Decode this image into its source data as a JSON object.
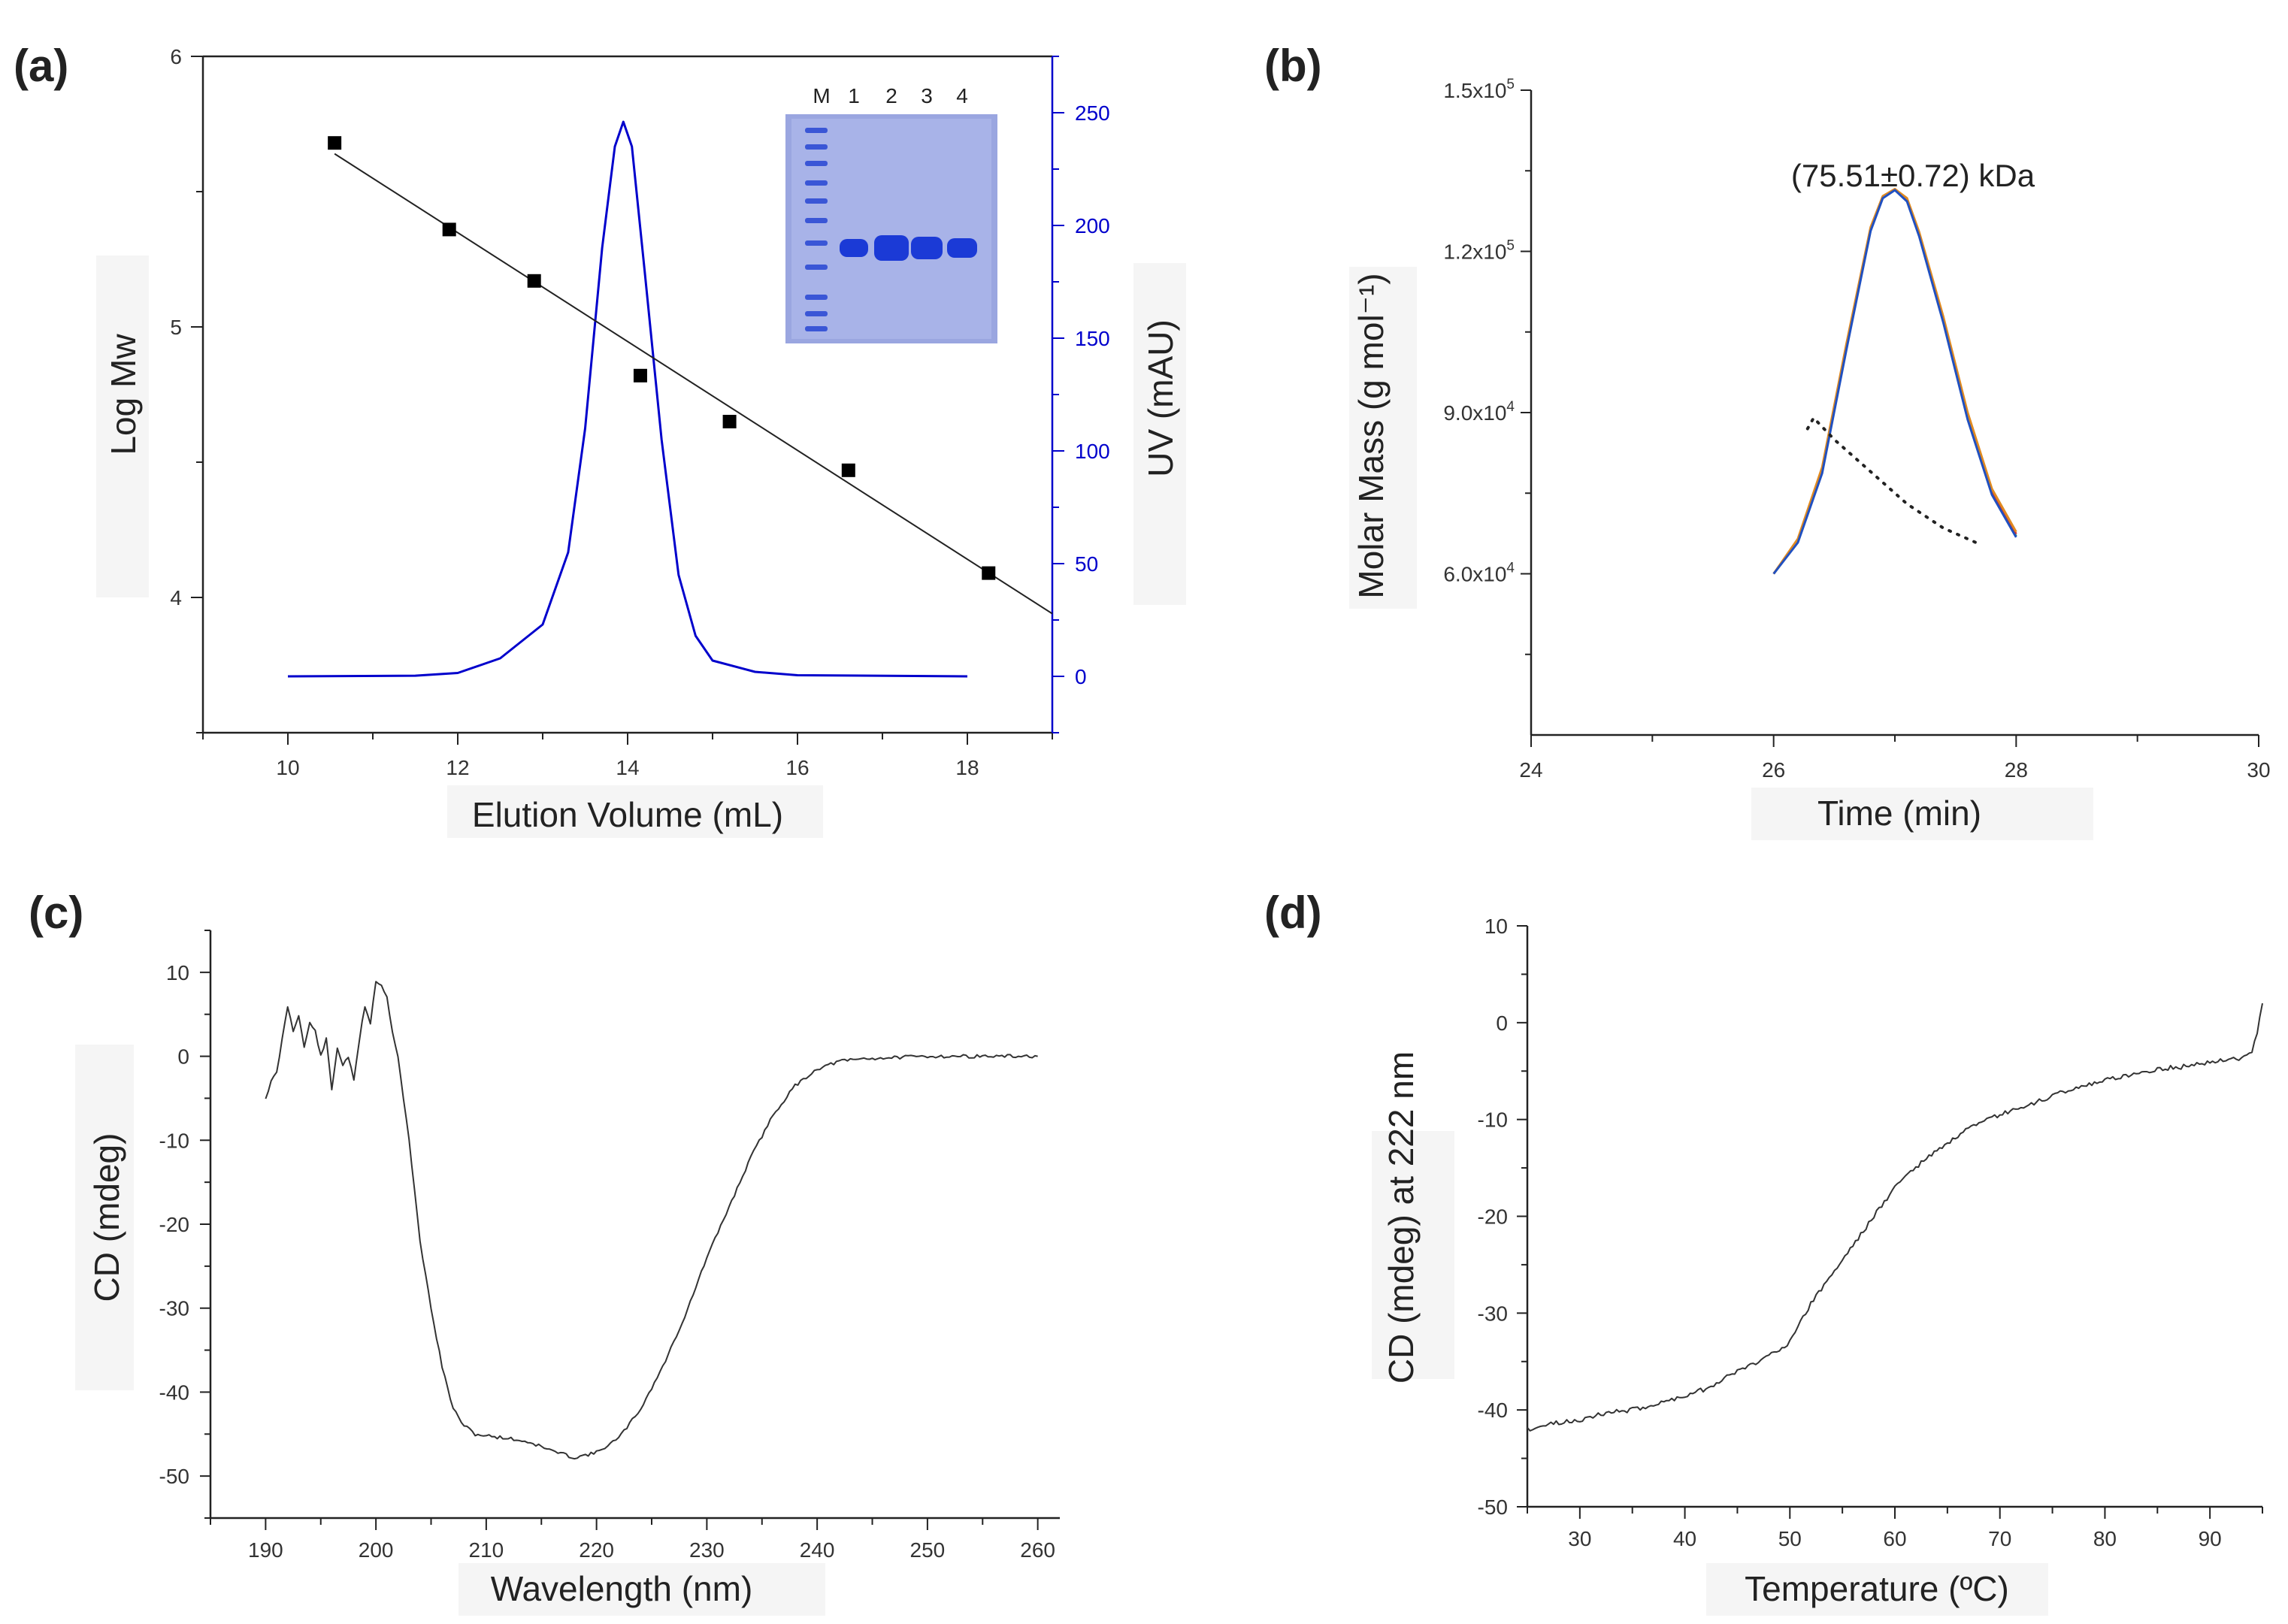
{
  "chart_data": [
    {
      "type": "scatter",
      "panel_label": "(a)",
      "title": "",
      "xlabel": "Elution Volume (mL)",
      "ylabel": "Log Mw",
      "y2label": "UV (mAU)",
      "xlim": [
        9,
        19
      ],
      "ylim": [
        3.5,
        6
      ],
      "y2lim": [
        -25,
        275
      ],
      "x_ticks": [
        "10",
        "12",
        "14",
        "16",
        "18"
      ],
      "y_ticks": [
        "4",
        "5",
        "6"
      ],
      "y2_ticks": [
        "0",
        "50",
        "100",
        "150",
        "200",
        "250"
      ],
      "y2_color": "#0000cc",
      "standards": {
        "x": [
          10.55,
          11.9,
          12.9,
          14.15,
          15.2,
          16.6,
          18.25
        ],
        "y": [
          5.68,
          5.36,
          5.17,
          4.82,
          4.65,
          4.47,
          4.09
        ]
      },
      "fit_line": {
        "x": [
          10.55,
          19.0
        ],
        "y": [
          5.64,
          3.94
        ]
      },
      "uv_trace": {
        "color": "#0000cc",
        "x": [
          10.0,
          11.5,
          12.0,
          12.5,
          13.0,
          13.3,
          13.5,
          13.7,
          13.85,
          13.95,
          14.05,
          14.2,
          14.4,
          14.6,
          14.8,
          15.0,
          15.5,
          16.0,
          18.0
        ],
        "y": [
          0,
          0.3,
          1.5,
          8,
          23,
          55,
          110,
          190,
          235,
          246,
          235,
          180,
          105,
          45,
          18,
          7,
          2,
          0.5,
          0
        ]
      },
      "gel_lanes": [
        "M",
        "1",
        "2",
        "3",
        "4"
      ]
    },
    {
      "type": "line",
      "panel_label": "(b)",
      "title": "",
      "annotation": "(75.51±0.72)  kDa",
      "xlabel": "Time (min)",
      "ylabel": "Molar Mass (g mol⁻¹)",
      "xlim": [
        24,
        30
      ],
      "ylim": [
        30000,
        150000
      ],
      "x_ticks": [
        "24",
        "26",
        "28",
        "30"
      ],
      "y_ticks": [
        "6.0x10^4",
        "9.0x10^4",
        "1.2x10^5",
        "1.5x10^5"
      ],
      "peak_series": [
        {
          "name": "trace-1",
          "color": "#2e9e45",
          "x": [
            26.0,
            26.2,
            26.4,
            26.6,
            26.8,
            26.9,
            27.0,
            27.1,
            27.2,
            27.4,
            27.6,
            27.8,
            28.0
          ],
          "y": [
            60000,
            66000,
            79000,
            102000,
            124000,
            130000,
            131500,
            129500,
            123000,
            107000,
            89000,
            75000,
            67000
          ]
        },
        {
          "name": "trace-2",
          "color": "#d03030",
          "x": [
            26.0,
            26.2,
            26.4,
            26.6,
            26.8,
            26.9,
            27.0,
            27.1,
            27.2,
            27.4,
            27.6,
            27.8,
            28.0
          ],
          "y": [
            60000,
            66300,
            79500,
            102500,
            124300,
            130200,
            131600,
            129700,
            123300,
            107400,
            89500,
            75400,
            67400
          ]
        },
        {
          "name": "trace-3",
          "color": "#e08a20",
          "x": [
            26.0,
            26.2,
            26.4,
            26.6,
            26.8,
            26.9,
            27.0,
            27.1,
            27.2,
            27.4,
            27.6,
            27.8,
            28.0
          ],
          "y": [
            60000,
            66500,
            79800,
            102800,
            124500,
            130300,
            131600,
            129900,
            123600,
            107800,
            90000,
            75800,
            67800
          ]
        },
        {
          "name": "trace-4",
          "color": "#2050c0",
          "x": [
            26.0,
            26.2,
            26.4,
            26.6,
            26.8,
            26.9,
            27.0,
            27.1,
            27.2,
            27.4,
            27.6,
            27.8,
            28.0
          ],
          "y": [
            60000,
            65800,
            78700,
            101700,
            123800,
            129900,
            131400,
            129300,
            122800,
            106700,
            88700,
            74700,
            66800
          ]
        }
      ],
      "molar_mass_series": {
        "name": "molar-mass",
        "style": "dotted",
        "x": [
          26.28,
          26.33,
          26.5,
          26.8,
          27.1,
          27.4,
          27.7
        ],
        "y": [
          87000,
          89000,
          85000,
          79000,
          73000,
          68500,
          65500
        ]
      }
    },
    {
      "type": "line",
      "panel_label": "(c)",
      "title": "",
      "xlabel": "Wavelength (nm)",
      "ylabel": "CD (mdeg)",
      "xlim": [
        185,
        262
      ],
      "ylim": [
        -55,
        15
      ],
      "x_ticks": [
        "190",
        "200",
        "210",
        "220",
        "230",
        "240",
        "250",
        "260"
      ],
      "y_ticks": [
        "10",
        "0",
        "-10",
        "-20",
        "-30",
        "-40",
        "-50"
      ],
      "series": [
        {
          "name": "CD spectrum",
          "color": "#333333",
          "x": [
            190,
            190.5,
            191,
            191.5,
            192,
            192.5,
            193,
            193.5,
            194,
            194.5,
            195,
            195.5,
            196,
            196.5,
            197,
            197.5,
            198,
            198.5,
            199,
            199.5,
            200,
            200.5,
            201,
            201.5,
            202,
            202.5,
            203,
            203.5,
            204,
            205,
            206,
            207,
            208,
            209,
            210,
            212,
            214,
            216,
            218,
            220,
            222,
            224,
            226,
            228,
            230,
            232,
            234,
            236,
            238,
            240,
            242,
            244,
            246,
            248,
            250,
            255,
            260
          ],
          "y": [
            -5,
            -3,
            -2,
            2,
            6,
            3,
            5,
            1,
            4,
            3,
            0,
            2,
            -4,
            1,
            -1,
            0,
            -3,
            2,
            6,
            4,
            9,
            8.5,
            7,
            3,
            0,
            -5,
            -10,
            -16,
            -22,
            -30,
            -37,
            -42,
            -44,
            -45,
            -45.2,
            -45.5,
            -46,
            -47,
            -47.8,
            -47.2,
            -45.5,
            -42,
            -37,
            -31,
            -24,
            -18,
            -12,
            -7,
            -3.5,
            -1.5,
            -0.6,
            -0.3,
            -0.2,
            -0.1,
            0,
            0,
            0
          ]
        }
      ]
    },
    {
      "type": "line",
      "panel_label": "(d)",
      "title": "",
      "xlabel": "Temperature (ºC)",
      "ylabel": "CD (mdeg) at 222 nm",
      "xlim": [
        25,
        95
      ],
      "ylim": [
        -50,
        10
      ],
      "x_ticks": [
        "30",
        "40",
        "50",
        "60",
        "70",
        "80",
        "90"
      ],
      "y_ticks": [
        "10",
        "0",
        "-10",
        "-20",
        "-30",
        "-40",
        "-50"
      ],
      "series": [
        {
          "name": "thermal melt",
          "color": "#333333",
          "x": [
            25,
            27,
            30,
            33,
            35,
            38,
            40,
            42,
            45,
            47,
            50,
            51,
            52,
            53,
            54,
            55,
            56,
            57,
            58,
            59,
            60,
            61,
            62,
            63,
            65,
            67,
            70,
            73,
            75,
            78,
            80,
            83,
            85,
            88,
            90,
            92,
            93.5,
            94,
            94.5,
            95
          ],
          "y": [
            -42,
            -41.5,
            -41,
            -40.2,
            -40,
            -39.2,
            -38.5,
            -37.8,
            -36,
            -35,
            -33,
            -31,
            -29,
            -27.5,
            -26,
            -24.5,
            -23,
            -21.5,
            -20,
            -18.5,
            -17,
            -15.8,
            -15,
            -14,
            -12.5,
            -11,
            -9.5,
            -8.5,
            -7.5,
            -6.5,
            -6,
            -5.2,
            -4.8,
            -4.5,
            -4,
            -3.8,
            -3.5,
            -3,
            -1,
            2
          ]
        }
      ]
    }
  ]
}
